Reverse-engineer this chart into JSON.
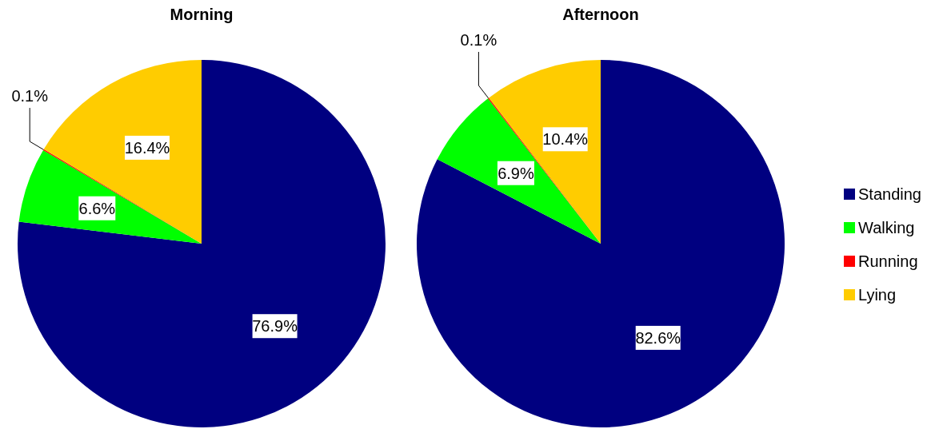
{
  "chart_data": [
    {
      "type": "pie",
      "title": "Morning",
      "categories": [
        null,
        null,
        null,
        null
      ],
      "values": [
        76.9,
        6.6,
        0.1,
        16.4
      ],
      "value_labels": [
        "76.9%",
        "6.6%",
        "0.1%",
        "16.4%"
      ],
      "colors": [
        "#000080",
        "#00ff00",
        "#ff0000",
        "#ffcc00"
      ],
      "legend": false
    },
    {
      "type": "pie",
      "title": "Afternoon",
      "categories": [
        "Standing",
        "Walking",
        "Running",
        "Lying"
      ],
      "values": [
        82.6,
        6.9,
        0.1,
        10.4
      ],
      "value_labels": [
        "82.6%",
        "6.9%",
        "0.1%",
        "10.4%"
      ],
      "colors": [
        "#000080",
        "#00ff00",
        "#ff0000",
        "#ffcc00"
      ],
      "legend": "right"
    }
  ]
}
